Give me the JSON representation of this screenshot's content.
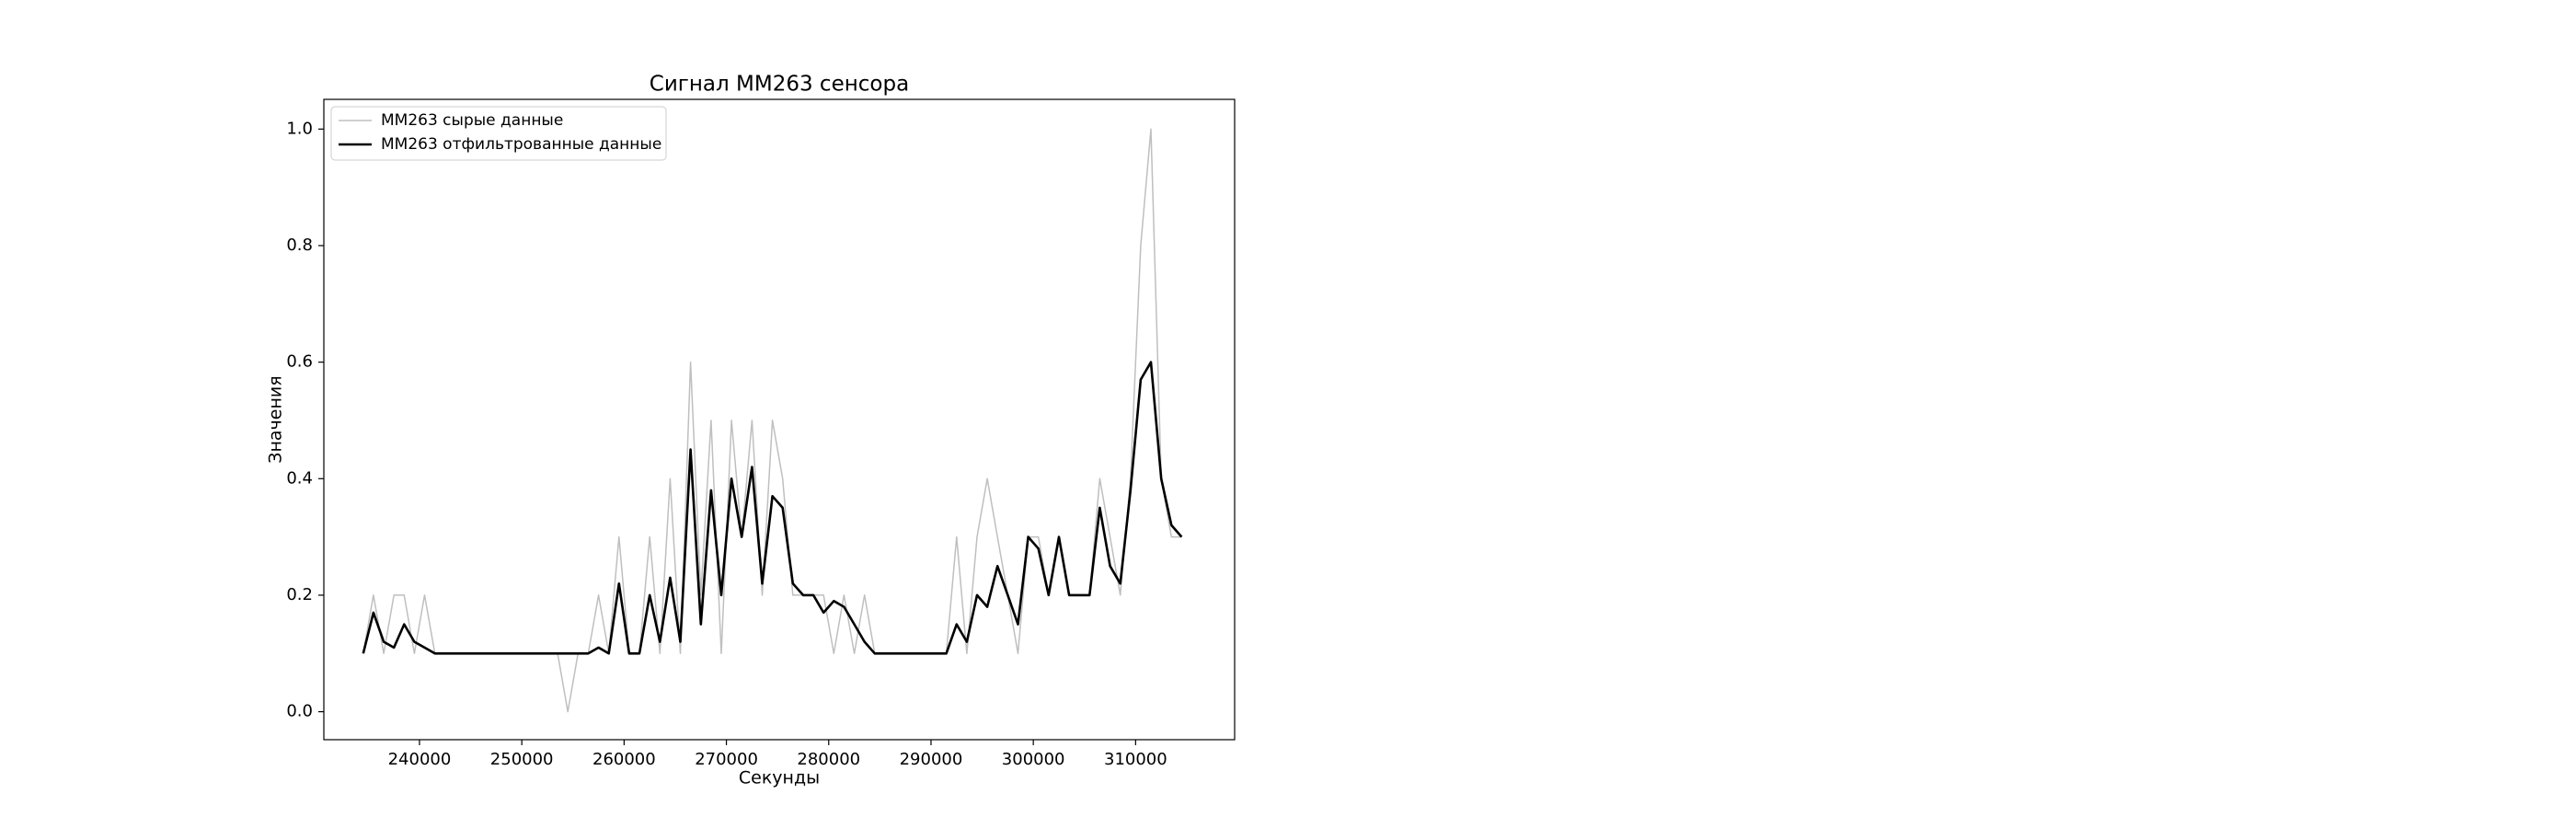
{
  "chart_data": {
    "type": "line",
    "title": "Сигнал MM263 сенсора",
    "x_label": "Секунды",
    "y_label": "Значения",
    "x": [
      234500,
      235500,
      236500,
      237500,
      238500,
      239500,
      240500,
      241500,
      242500,
      243500,
      244500,
      245500,
      246500,
      247500,
      248500,
      249500,
      250500,
      251500,
      252500,
      253500,
      254500,
      255500,
      256500,
      257500,
      258500,
      259500,
      260500,
      261500,
      262500,
      263500,
      264500,
      265500,
      266500,
      267500,
      268500,
      269500,
      270500,
      271500,
      272500,
      273500,
      274500,
      275500,
      276500,
      277500,
      278500,
      279500,
      280500,
      281500,
      282500,
      283500,
      284500,
      285500,
      286500,
      287500,
      288500,
      289500,
      290500,
      291500,
      292500,
      293500,
      294500,
      295500,
      296500,
      297500,
      298500,
      299500,
      300500,
      301500,
      302500,
      303500,
      304500,
      305500,
      306500,
      307500,
      308500,
      309500,
      310500,
      311500,
      312500,
      313500,
      314500
    ],
    "series": [
      {
        "name": "MM263 сырые данные",
        "color": "#bfbfbf",
        "values": [
          0.1,
          0.2,
          0.1,
          0.2,
          0.2,
          0.1,
          0.2,
          0.1,
          0.1,
          0.1,
          0.1,
          0.1,
          0.1,
          0.1,
          0.1,
          0.1,
          0.1,
          0.1,
          0.1,
          0.1,
          0.0,
          0.1,
          0.1,
          0.2,
          0.1,
          0.3,
          0.1,
          0.1,
          0.3,
          0.1,
          0.4,
          0.1,
          0.6,
          0.2,
          0.5,
          0.1,
          0.5,
          0.3,
          0.5,
          0.2,
          0.5,
          0.4,
          0.2,
          0.2,
          0.2,
          0.2,
          0.1,
          0.2,
          0.1,
          0.2,
          0.1,
          0.1,
          0.1,
          0.1,
          0.1,
          0.1,
          0.1,
          0.1,
          0.3,
          0.1,
          0.3,
          0.4,
          0.3,
          0.2,
          0.1,
          0.3,
          0.3,
          0.2,
          0.3,
          0.2,
          0.2,
          0.2,
          0.4,
          0.3,
          0.2,
          0.4,
          0.8,
          1.0,
          0.4,
          0.3,
          0.3
        ]
      },
      {
        "name": "MM263 отфильтрованные данные",
        "color": "#000000",
        "values": [
          0.1,
          0.17,
          0.12,
          0.11,
          0.15,
          0.12,
          0.11,
          0.1,
          0.1,
          0.1,
          0.1,
          0.1,
          0.1,
          0.1,
          0.1,
          0.1,
          0.1,
          0.1,
          0.1,
          0.1,
          0.1,
          0.1,
          0.1,
          0.11,
          0.1,
          0.22,
          0.1,
          0.1,
          0.2,
          0.12,
          0.23,
          0.12,
          0.45,
          0.15,
          0.38,
          0.2,
          0.4,
          0.3,
          0.42,
          0.22,
          0.37,
          0.35,
          0.22,
          0.2,
          0.2,
          0.17,
          0.19,
          0.18,
          0.15,
          0.12,
          0.1,
          0.1,
          0.1,
          0.1,
          0.1,
          0.1,
          0.1,
          0.1,
          0.15,
          0.12,
          0.2,
          0.18,
          0.25,
          0.2,
          0.15,
          0.3,
          0.28,
          0.2,
          0.3,
          0.2,
          0.2,
          0.2,
          0.35,
          0.25,
          0.22,
          0.38,
          0.57,
          0.6,
          0.4,
          0.32,
          0.3
        ]
      }
    ],
    "xlim": [
      230650,
      319680
    ],
    "ylim": [
      -0.048,
      1.051
    ],
    "xticks": [
      240000,
      250000,
      260000,
      270000,
      280000,
      290000,
      300000,
      310000
    ],
    "yticks": [
      {
        "value": 0,
        "label": "0.0"
      },
      0.2,
      0.4,
      0.6,
      0.8,
      {
        "value": 1,
        "label": "1.0"
      }
    ],
    "legend": "upper left"
  }
}
